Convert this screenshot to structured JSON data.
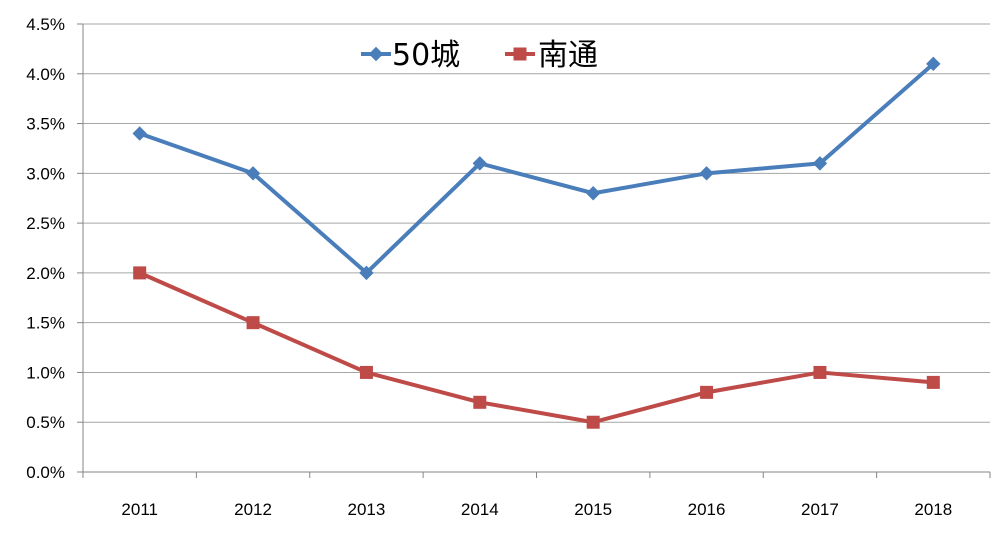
{
  "chart_data": {
    "type": "line",
    "title": "",
    "xlabel": "",
    "ylabel": "",
    "categories": [
      "2011",
      "2012",
      "2013",
      "2014",
      "2015",
      "2016",
      "2017",
      "2018"
    ],
    "series": [
      {
        "name": "50城",
        "color": "#4a7ebb",
        "marker": "diamond",
        "values": [
          3.4,
          3.0,
          2.0,
          3.1,
          2.8,
          3.0,
          3.1,
          4.1
        ]
      },
      {
        "name": "南通",
        "color": "#be4b48",
        "marker": "square",
        "values": [
          2.0,
          1.5,
          1.0,
          0.7,
          0.5,
          0.8,
          1.0,
          0.9
        ]
      }
    ],
    "ylim": [
      0,
      4.5
    ],
    "yticks": [
      "0.0%",
      "0.5%",
      "1.0%",
      "1.5%",
      "2.0%",
      "2.5%",
      "3.0%",
      "3.5%",
      "4.0%",
      "4.5%"
    ],
    "grid": true,
    "legend_position": "top-center",
    "gridline_color": "#a6a6a6",
    "axis_color": "#868686"
  }
}
